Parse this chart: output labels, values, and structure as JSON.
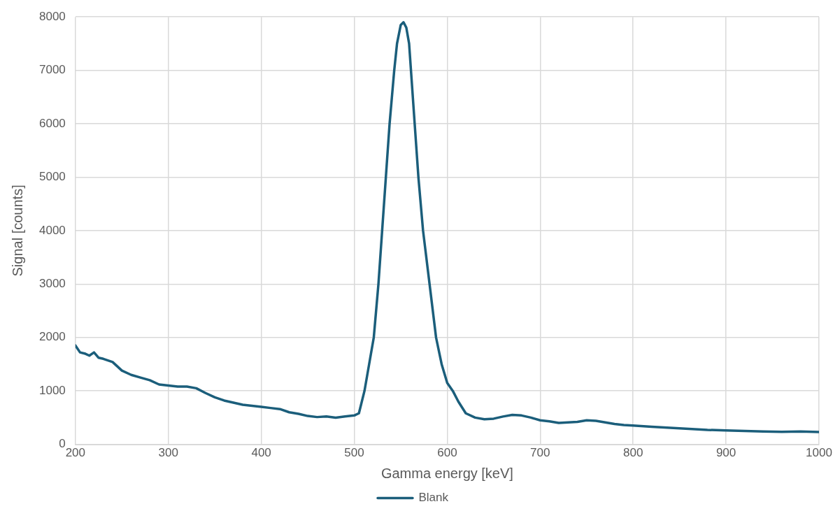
{
  "chart_data": {
    "type": "line",
    "xlabel": "Gamma energy [keV]",
    "ylabel": "Signal [counts]",
    "xlim": [
      200,
      1000
    ],
    "xticks": [
      200,
      300,
      400,
      500,
      600,
      700,
      800,
      900,
      1000
    ],
    "ylim": [
      0,
      8000
    ],
    "yticks": [
      0,
      1000,
      2000,
      3000,
      4000,
      5000,
      6000,
      7000,
      8000
    ],
    "grid": true,
    "legend": "bottom",
    "marker": "none",
    "line_style": "solid",
    "series": [
      {
        "name": "Blank",
        "color": "#1b5e7b",
        "x": [
          200,
          205,
          210,
          215,
          220,
          225,
          230,
          240,
          250,
          260,
          270,
          280,
          290,
          300,
          310,
          320,
          330,
          340,
          350,
          360,
          370,
          380,
          390,
          400,
          410,
          420,
          430,
          440,
          450,
          460,
          470,
          480,
          490,
          500,
          505,
          511,
          516,
          521,
          526,
          530,
          534,
          538,
          543,
          546,
          550,
          553,
          556,
          559,
          561,
          565,
          569,
          574,
          581,
          588,
          594,
          600,
          606,
          612,
          620,
          630,
          640,
          650,
          660,
          670,
          680,
          690,
          700,
          710,
          720,
          730,
          740,
          750,
          760,
          770,
          780,
          790,
          800,
          820,
          840,
          860,
          880,
          900,
          920,
          940,
          960,
          980,
          1000
        ],
        "values": [
          1850,
          1720,
          1700,
          1660,
          1720,
          1620,
          1600,
          1540,
          1380,
          1300,
          1250,
          1200,
          1120,
          1100,
          1080,
          1080,
          1050,
          960,
          880,
          820,
          780,
          740,
          720,
          700,
          680,
          660,
          600,
          570,
          530,
          510,
          520,
          500,
          520,
          540,
          580,
          1000,
          1500,
          2000,
          3000,
          4000,
          5000,
          6000,
          7000,
          7500,
          7850,
          7900,
          7800,
          7500,
          7000,
          6000,
          5000,
          4000,
          3000,
          2000,
          1500,
          1150,
          1000,
          800,
          580,
          500,
          470,
          480,
          520,
          550,
          540,
          500,
          450,
          430,
          400,
          410,
          420,
          450,
          440,
          410,
          380,
          360,
          350,
          330,
          310,
          290,
          270,
          260,
          250,
          240,
          235,
          240,
          230
        ]
      }
    ]
  }
}
